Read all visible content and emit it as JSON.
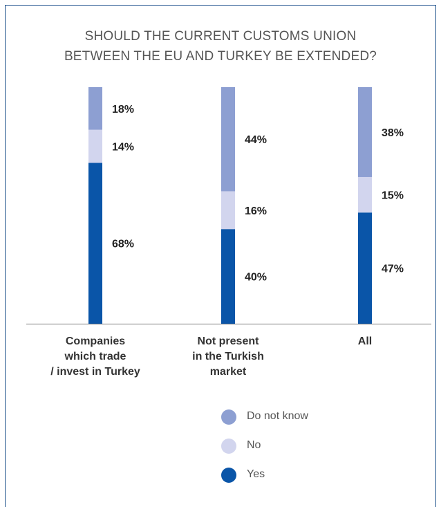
{
  "chart_data": {
    "type": "bar",
    "stacked": true,
    "title": "SHOULD THE CURRENT CUSTOMS UNION BETWEEN THE EU AND TURKEY BE EXTENDED?",
    "title_lines": [
      "SHOULD THE CURRENT CUSTOMS UNION",
      "BETWEEN THE EU AND TURKEY BE EXTENDED?"
    ],
    "categories": [
      [
        "Companies",
        "which trade",
        "/ invest in Turkey"
      ],
      [
        "Not present",
        "in the Turkish",
        "market"
      ],
      [
        "All"
      ]
    ],
    "series": [
      {
        "name": "Yes",
        "values": [
          68,
          40,
          47
        ],
        "labels": [
          "68%",
          "40%",
          "47%"
        ],
        "color": "#0a55a8"
      },
      {
        "name": "No",
        "values": [
          14,
          16,
          15
        ],
        "labels": [
          "14%",
          "16%",
          "15%"
        ],
        "color": "#d2d5ee"
      },
      {
        "name": "Do not know",
        "values": [
          18,
          44,
          38
        ],
        "labels": [
          "18%",
          "44%",
          "38%"
        ],
        "color": "#8d9fd2"
      }
    ],
    "ylim": [
      0,
      100
    ],
    "legend": {
      "position": "bottom",
      "order": [
        "Do not know",
        "No",
        "Yes"
      ]
    },
    "axis_color": "#777777",
    "label_color": "#222222"
  }
}
